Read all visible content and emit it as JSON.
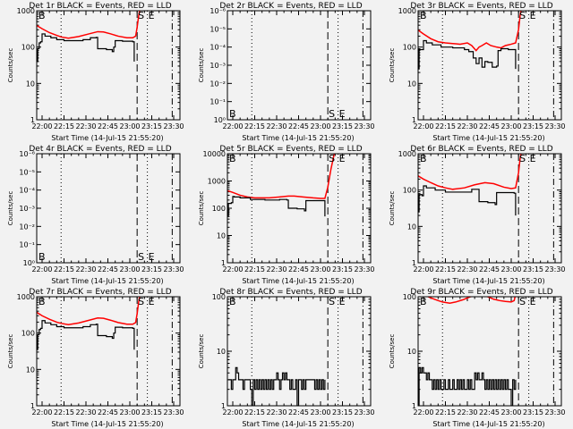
{
  "chart_data": [
    {
      "type": "line",
      "title": "Det 1r BLACK = Events, RED = LLD",
      "xlabel": "Start Time (14-Jul-15 21:55:20)",
      "ylabel": "Counts/sec",
      "ylim": [
        1,
        1000
      ],
      "scale": "log",
      "yticks": [
        "1",
        "10",
        "100",
        "1000"
      ],
      "marker_pos": "top",
      "series": [
        {
          "name": "LLD",
          "color": "#ff0000",
          "x": [
            "21:56",
            "22:00",
            "22:05",
            "22:10",
            "22:13",
            "22:18",
            "22:25",
            "22:32",
            "22:38",
            "22:42",
            "22:47",
            "22:52",
            "22:58",
            "23:02",
            "23:04",
            "23:05",
            "23:06",
            "23:07"
          ],
          "y": [
            400,
            320,
            250,
            210,
            190,
            175,
            195,
            230,
            265,
            260,
            230,
            200,
            180,
            180,
            200,
            350,
            700,
            1200
          ]
        },
        {
          "name": "Events",
          "color": "#000000",
          "x": [
            "21:56",
            "21:57",
            "21:58",
            "21:59",
            "22:00",
            "22:02",
            "22:06",
            "22:10",
            "22:15",
            "22:20",
            "22:28",
            "22:33",
            "22:37",
            "22:38",
            "22:44",
            "22:48",
            "22:49",
            "22:50",
            "22:55",
            "23:00",
            "23:02",
            "23:03"
          ],
          "y": [
            40,
            90,
            130,
            140,
            230,
            200,
            180,
            160,
            150,
            150,
            160,
            180,
            185,
            90,
            85,
            75,
            100,
            150,
            145,
            145,
            140,
            40
          ]
        }
      ]
    },
    {
      "type": "line",
      "title": "Det 2r BLACK = Events, RED = LLD",
      "xlabel": "Start Time (14-Jul-15 21:55:20)",
      "ylabel": "Counts/sec",
      "ylim": [
        1,
        1000000
      ],
      "scale": "log",
      "yticks": [
        "10⁰",
        "10⁻¹",
        "10⁻²",
        "10⁻³",
        "10⁻⁴",
        "10⁻⁵",
        "10⁻⁶"
      ],
      "marker_pos": "bottom",
      "series": []
    },
    {
      "type": "line",
      "title": "Det 3r BLACK = Events, RED = LLD",
      "xlabel": "Start Time (14-Jul-15 21:55:20)",
      "ylabel": "Counts/sec",
      "ylim": [
        1,
        1000
      ],
      "scale": "log",
      "yticks": [
        "1",
        "10",
        "100",
        "1000"
      ],
      "marker_pos": "top",
      "series": [
        {
          "name": "LLD",
          "color": "#ff0000",
          "x": [
            "21:56",
            "22:00",
            "22:05",
            "22:10",
            "22:15",
            "22:20",
            "22:25",
            "22:30",
            "22:33",
            "22:36",
            "22:38",
            "22:40",
            "22:43",
            "22:46",
            "22:50",
            "22:53",
            "22:56",
            "23:00",
            "23:03",
            "23:05",
            "23:06",
            "23:07"
          ],
          "y": [
            300,
            230,
            170,
            140,
            130,
            125,
            120,
            130,
            110,
            80,
            100,
            110,
            130,
            110,
            100,
            95,
            110,
            120,
            130,
            300,
            700,
            1200
          ]
        },
        {
          "name": "Events",
          "color": "#000000",
          "x": [
            "21:56",
            "21:57",
            "21:59",
            "22:00",
            "22:02",
            "22:06",
            "22:12",
            "22:20",
            "22:28",
            "22:31",
            "22:34",
            "22:36",
            "22:38",
            "22:40",
            "22:42",
            "22:44",
            "22:47",
            "22:50",
            "22:51",
            "22:53",
            "22:58",
            "23:02",
            "23:03"
          ],
          "y": [
            25,
            85,
            85,
            150,
            130,
            115,
            100,
            95,
            85,
            75,
            50,
            35,
            50,
            28,
            40,
            38,
            28,
            30,
            80,
            90,
            85,
            85,
            25
          ]
        }
      ]
    },
    {
      "type": "line",
      "title": "Det 4r BLACK = Events, RED = LLD",
      "xlabel": "Start Time (14-Jul-15 21:55:20)",
      "ylabel": "Counts/sec",
      "ylim": [
        1,
        1000000
      ],
      "scale": "log",
      "yticks": [
        "10⁰",
        "10⁻¹",
        "10⁻²",
        "10⁻³",
        "10⁻⁴",
        "10⁻⁵",
        "10⁻⁶"
      ],
      "marker_pos": "bottom",
      "series": []
    },
    {
      "type": "line",
      "title": "Det 5r BLACK = Events, RED = LLD",
      "xlabel": "Start Time (14-Jul-15 21:55:20)",
      "ylabel": "Counts/sec",
      "ylim": [
        1,
        10000
      ],
      "scale": "log",
      "yticks": [
        "1",
        "10",
        "100",
        "1000",
        "10000"
      ],
      "marker_pos": "top",
      "series": [
        {
          "name": "LLD",
          "color": "#ff0000",
          "x": [
            "21:56",
            "22:00",
            "22:05",
            "22:10",
            "22:15",
            "22:25",
            "22:32",
            "22:38",
            "22:42",
            "22:48",
            "22:55",
            "23:00",
            "23:03",
            "23:05",
            "23:07",
            "23:09",
            "23:10"
          ],
          "y": [
            450,
            380,
            300,
            260,
            240,
            240,
            260,
            280,
            280,
            260,
            240,
            230,
            230,
            600,
            2500,
            8000,
            14000
          ]
        },
        {
          "name": "Events",
          "color": "#000000",
          "x": [
            "21:56",
            "21:57",
            "21:59",
            "22:00",
            "22:01",
            "22:05",
            "22:12",
            "22:22",
            "22:32",
            "22:37",
            "22:38",
            "22:44",
            "22:49",
            "22:50",
            "22:56",
            "23:02",
            "23:03"
          ],
          "y": [
            50,
            150,
            160,
            270,
            260,
            240,
            210,
            200,
            210,
            200,
            100,
            95,
            80,
            190,
            190,
            190,
            50
          ]
        }
      ]
    },
    {
      "type": "line",
      "title": "Det 6r BLACK = Events, RED = LLD",
      "xlabel": "Start Time (14-Jul-15 21:55:20)",
      "ylabel": "Counts/sec",
      "ylim": [
        1,
        1000
      ],
      "scale": "log",
      "yticks": [
        "1",
        "10",
        "100",
        "1000"
      ],
      "marker_pos": "top",
      "series": [
        {
          "name": "LLD",
          "color": "#ff0000",
          "x": [
            "21:56",
            "22:00",
            "22:05",
            "22:10",
            "22:15",
            "22:20",
            "22:28",
            "22:35",
            "22:42",
            "22:48",
            "22:55",
            "23:00",
            "23:03",
            "23:05",
            "23:06",
            "23:07"
          ],
          "y": [
            250,
            200,
            160,
            130,
            115,
            105,
            115,
            140,
            160,
            150,
            120,
            110,
            115,
            300,
            700,
            1200
          ]
        },
        {
          "name": "Events",
          "color": "#000000",
          "x": [
            "21:56",
            "21:57",
            "21:59",
            "22:00",
            "22:02",
            "22:08",
            "22:15",
            "22:25",
            "22:33",
            "22:38",
            "22:44",
            "22:49",
            "22:50",
            "22:56",
            "23:02",
            "23:03"
          ],
          "y": [
            25,
            75,
            70,
            130,
            115,
            100,
            88,
            88,
            105,
            48,
            45,
            40,
            85,
            85,
            82,
            20
          ]
        }
      ]
    },
    {
      "type": "line",
      "title": "Det 7r BLACK = Events, RED = LLD",
      "xlabel": "Start Time (14-Jul-15 21:55:20)",
      "ylabel": "Counts/sec",
      "ylim": [
        1,
        1000
      ],
      "scale": "log",
      "yticks": [
        "1",
        "10",
        "100",
        "1000"
      ],
      "marker_pos": "top",
      "series": [
        {
          "name": "LLD",
          "color": "#ff0000",
          "x": [
            "21:56",
            "22:00",
            "22:05",
            "22:10",
            "22:13",
            "22:18",
            "22:25",
            "22:32",
            "22:38",
            "22:42",
            "22:47",
            "22:52",
            "22:58",
            "23:02",
            "23:04",
            "23:05",
            "23:06",
            "23:07"
          ],
          "y": [
            380,
            300,
            240,
            200,
            185,
            170,
            190,
            225,
            260,
            255,
            225,
            195,
            175,
            175,
            195,
            340,
            700,
            1200
          ]
        },
        {
          "name": "Events",
          "color": "#000000",
          "x": [
            "21:56",
            "21:57",
            "21:58",
            "21:59",
            "22:00",
            "22:02",
            "22:06",
            "22:10",
            "22:15",
            "22:20",
            "22:28",
            "22:33",
            "22:37",
            "22:38",
            "22:44",
            "22:48",
            "22:49",
            "22:50",
            "22:55",
            "23:00",
            "23:02",
            "23:03"
          ],
          "y": [
            35,
            90,
            125,
            135,
            220,
            190,
            170,
            150,
            140,
            140,
            150,
            170,
            175,
            85,
            80,
            72,
            100,
            145,
            140,
            140,
            135,
            35
          ]
        }
      ]
    },
    {
      "type": "line",
      "title": "Det 8r BLACK = Events, RED = LLD",
      "xlabel": "Start Time (14-Jul-15 21:55:20)",
      "ylabel": "Counts/sec",
      "ylim": [
        1,
        100
      ],
      "scale": "log",
      "yticks": [
        "1",
        "10",
        "100"
      ],
      "marker_pos": "top",
      "series": [
        {
          "name": "Events",
          "color": "#000000",
          "x": [
            "21:57",
            "21:58",
            "21:59",
            "22:00",
            "22:01",
            "22:02",
            "22:03",
            "22:04",
            "22:05",
            "22:06",
            "22:07",
            "22:08",
            "22:09",
            "22:10",
            "22:11",
            "22:12",
            "22:13",
            "22:14",
            "22:15",
            "22:16",
            "22:17",
            "22:18",
            "22:19",
            "22:20",
            "22:21",
            "22:22",
            "22:23",
            "22:24",
            "22:25",
            "22:26",
            "22:27",
            "22:28",
            "22:29",
            "22:30",
            "22:31",
            "22:32",
            "22:33",
            "22:34",
            "22:35",
            "22:36",
            "22:37",
            "22:38",
            "22:39",
            "22:40",
            "22:41",
            "22:42",
            "22:43",
            "22:44",
            "22:45",
            "22:46",
            "22:47",
            "22:48",
            "22:49",
            "22:50",
            "22:55",
            "22:56",
            "22:57",
            "22:58",
            "22:59",
            "23:00",
            "23:01",
            "23:02",
            "23:03"
          ],
          "y": [
            3,
            3,
            2,
            3,
            3,
            5,
            4,
            3,
            3,
            3,
            2,
            3,
            3,
            3,
            3,
            2,
            1,
            3,
            2,
            3,
            2,
            3,
            2,
            3,
            2,
            3,
            2,
            3,
            2,
            3,
            2,
            3,
            3,
            4,
            3,
            2,
            3,
            4,
            3,
            4,
            3,
            3,
            2,
            3,
            2,
            2,
            3,
            1,
            3,
            3,
            2,
            3,
            2,
            3,
            3,
            2,
            3,
            2,
            3,
            2,
            3,
            2,
            3
          ]
        }
      ]
    },
    {
      "type": "line",
      "title": "Det 9r BLACK = Events, RED = LLD",
      "xlabel": "Start Time (14-Jul-15 21:55:20)",
      "ylabel": "Counts/sec",
      "ylim": [
        1,
        100
      ],
      "scale": "log",
      "yticks": [
        "1",
        "10",
        "100"
      ],
      "marker_pos": "top",
      "series": [
        {
          "name": "LLD",
          "color": "#ff0000",
          "x": [
            "22:00",
            "22:05",
            "22:10",
            "22:13",
            "22:18",
            "22:22",
            "22:27",
            "22:32",
            "22:40",
            "22:44",
            "22:48",
            "22:52",
            "22:56",
            "23:00",
            "23:02",
            "23:03"
          ],
          "y": [
            110,
            95,
            85,
            80,
            76,
            80,
            88,
            100,
            110,
            100,
            90,
            85,
            82,
            80,
            85,
            110
          ]
        },
        {
          "name": "Events",
          "color": "#000000",
          "x": [
            "21:56",
            "21:57",
            "21:58",
            "21:59",
            "22:00",
            "22:01",
            "22:02",
            "22:03",
            "22:04",
            "22:05",
            "22:06",
            "22:07",
            "22:08",
            "22:09",
            "22:10",
            "22:11",
            "22:12",
            "22:13",
            "22:14",
            "22:15",
            "22:16",
            "22:17",
            "22:18",
            "22:19",
            "22:20",
            "22:21",
            "22:22",
            "22:23",
            "22:24",
            "22:25",
            "22:26",
            "22:27",
            "22:28",
            "22:29",
            "22:30",
            "22:31",
            "22:32",
            "22:33",
            "22:34",
            "22:35",
            "22:36",
            "22:37",
            "22:38",
            "22:39",
            "22:40",
            "22:41",
            "22:42",
            "22:43",
            "22:44",
            "22:45",
            "22:46",
            "22:47",
            "22:48",
            "22:49",
            "22:50",
            "22:51",
            "22:52",
            "22:53",
            "22:54",
            "22:55",
            "22:56",
            "22:57",
            "22:58",
            "22:59",
            "23:00",
            "23:01",
            "23:02",
            "23:03"
          ],
          "y": [
            1,
            5,
            4,
            5,
            4,
            4,
            3,
            4,
            3,
            3,
            2,
            3,
            2,
            3,
            2,
            3,
            2,
            2,
            3,
            2,
            2,
            3,
            2,
            2,
            3,
            2,
            2,
            3,
            2,
            3,
            2,
            3,
            2,
            2,
            3,
            2,
            3,
            2,
            2,
            4,
            3,
            4,
            3,
            3,
            4,
            3,
            2,
            3,
            2,
            3,
            2,
            3,
            2,
            3,
            2,
            3,
            2,
            3,
            2,
            3,
            2,
            3,
            2,
            2,
            1,
            3,
            2,
            3
          ]
        }
      ]
    }
  ],
  "time_ticks": [
    "22:00",
    "22:15",
    "22:30",
    "22:45",
    "23:00",
    "23:15",
    "23:30"
  ],
  "markers": {
    "B": "B",
    "S": "S",
    "E": "E"
  },
  "reference_lines": [
    {
      "time": "22:13",
      "style": "dotted"
    },
    {
      "time": "23:05",
      "style": "dashed",
      "label": "S"
    },
    {
      "time": "23:12",
      "style": "dotted",
      "label": "E"
    },
    {
      "time": "23:29",
      "style": "dash-dot"
    }
  ]
}
